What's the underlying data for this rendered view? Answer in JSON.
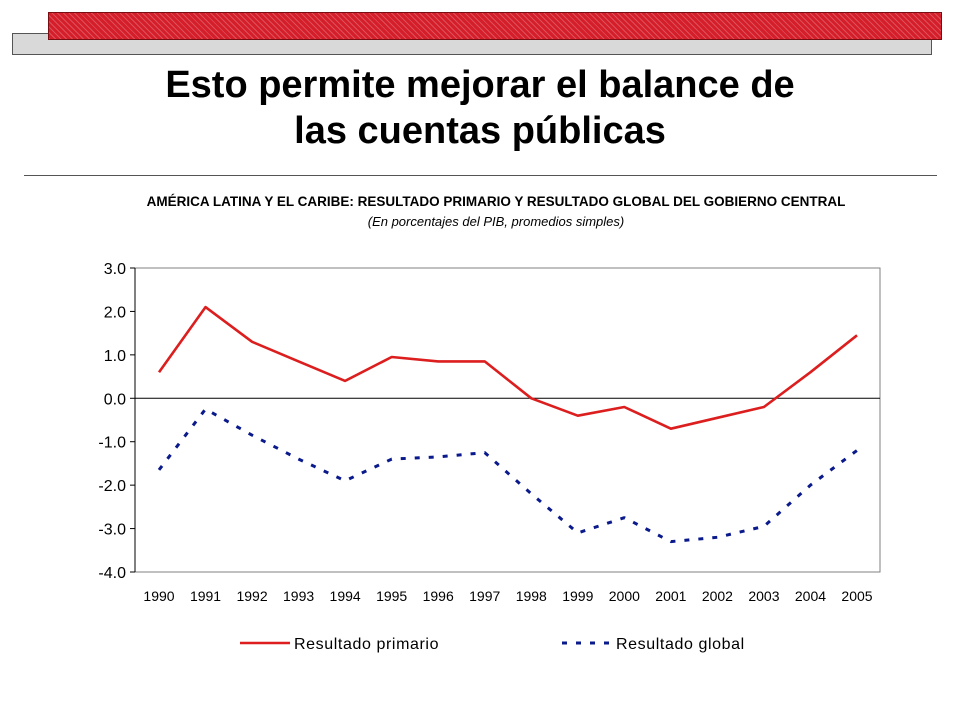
{
  "slide": {
    "title_line1": "Esto permite mejorar el balance de",
    "title_line2": "las cuentas públicas"
  },
  "colors": {
    "banner_red": "#d41f2b",
    "primary_series": "#dc1e1e",
    "global_series": "#0a1a8c"
  },
  "chart_data": {
    "type": "line",
    "title": "AMÉRICA LATINA Y EL CARIBE: RESULTADO PRIMARIO Y RESULTADO GLOBAL DEL GOBIERNO CENTRAL",
    "subtitle": "(En porcentajes del PIB, promedios simples)",
    "xlabel": "",
    "ylabel": "",
    "categories": [
      "1990",
      "1991",
      "1992",
      "1993",
      "1994",
      "1995",
      "1996",
      "1997",
      "1998",
      "1999",
      "2000",
      "2001",
      "2002",
      "2003",
      "2004",
      "2005"
    ],
    "y_ticks": [
      "3.0",
      "2.0",
      "1.0",
      "0.0",
      "-1.0",
      "-2.0",
      "-3.0",
      "-4.0"
    ],
    "ylim": [
      -4.0,
      3.0
    ],
    "grid": false,
    "legend_position": "bottom",
    "series": [
      {
        "name": "Resultado primario",
        "style": "solid",
        "values": [
          0.6,
          2.1,
          1.3,
          0.85,
          0.4,
          0.95,
          0.85,
          0.85,
          0.0,
          -0.4,
          -0.2,
          -0.7,
          -0.45,
          -0.2,
          0.6,
          1.45
        ]
      },
      {
        "name": "Resultado global",
        "style": "dashed",
        "values": [
          -1.65,
          -0.25,
          -0.85,
          -1.4,
          -1.9,
          -1.4,
          -1.35,
          -1.25,
          -2.2,
          -3.1,
          -2.75,
          -3.3,
          -3.2,
          -2.95,
          -2.0,
          -1.2
        ]
      }
    ]
  }
}
